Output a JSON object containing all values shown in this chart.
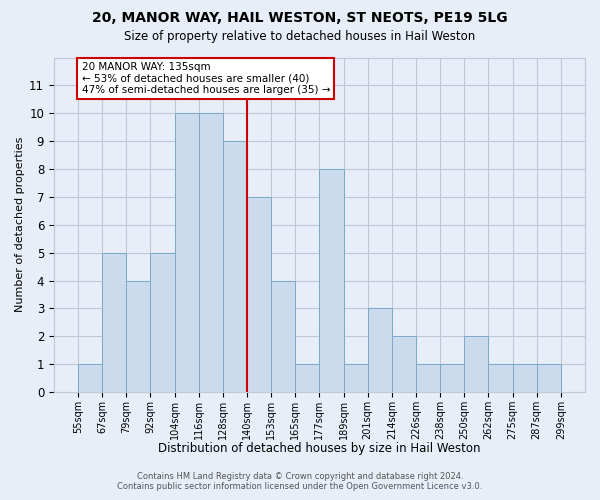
{
  "title_line1": "20, MANOR WAY, HAIL WESTON, ST NEOTS, PE19 5LG",
  "title_line2": "Size of property relative to detached houses in Hail Weston",
  "xlabel": "Distribution of detached houses by size in Hail Weston",
  "ylabel": "Number of detached properties",
  "bar_values": [
    1,
    5,
    4,
    5,
    10,
    10,
    9,
    7,
    4,
    1,
    8,
    1,
    3,
    2,
    1,
    1,
    2,
    1,
    1,
    1
  ],
  "bin_labels": [
    "55sqm",
    "67sqm",
    "79sqm",
    "92sqm",
    "104sqm",
    "116sqm",
    "128sqm",
    "140sqm",
    "153sqm",
    "165sqm",
    "177sqm",
    "189sqm",
    "201sqm",
    "214sqm",
    "226sqm",
    "238sqm",
    "250sqm",
    "262sqm",
    "275sqm",
    "287sqm",
    "299sqm"
  ],
  "bar_color": "#ccdaed",
  "bar_edge_color": "#7aaac8",
  "reference_line_color": "#cc0000",
  "reference_bar_index": 6,
  "annotation_text": "20 MANOR WAY: 135sqm\n← 53% of detached houses are smaller (40)\n47% of semi-detached houses are larger (35) →",
  "annotation_box_color": "white",
  "annotation_box_edge_color": "#cc0000",
  "ylim_max": 12,
  "grid_color": "#c0c8d8",
  "bg_color": "#e8eef8",
  "footer_line1": "Contains HM Land Registry data © Crown copyright and database right 2024.",
  "footer_line2": "Contains public sector information licensed under the Open Government Licence v3.0."
}
